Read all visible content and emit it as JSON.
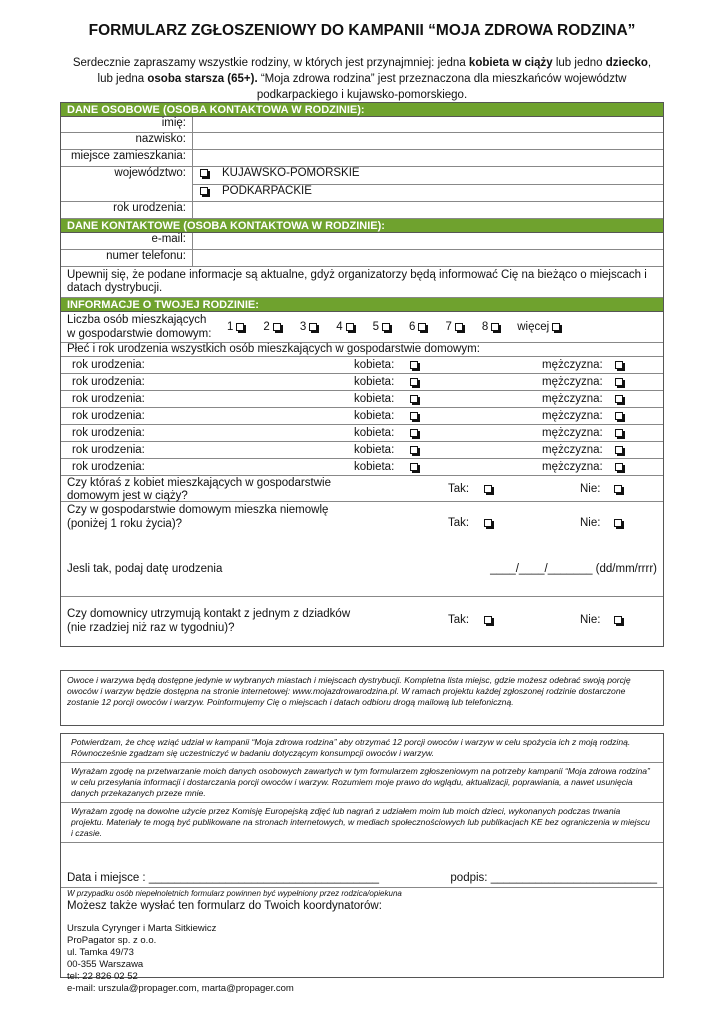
{
  "title": "FORMULARZ ZGŁOSZENIOWY DO KAMPANII “MOJA ZDROWA RODZINA”",
  "intro": {
    "p1": "Serdecznie zapraszamy wszystkie rodziny, w których jest przynajmniej: jedna ",
    "b1": "kobieta w ciąży",
    "p2": " lub jedno ",
    "b2": "dziecko",
    "p3": ", lub jedna ",
    "b3": "osoba starsza (65+).",
    "p4": " “Moja zdrowa rodzina” jest przeznaczona dla mieszkańców województw podkarpackiego i kujawsko-pomorskiego."
  },
  "colors": {
    "section_header": "#6fa22e"
  },
  "personal": {
    "header": "DANE OSOBOWE (OSOBA KONTAKTOWA W RODZINIE):",
    "first_name": "imię:",
    "last_name": "nazwisko:",
    "residence": "miejsce zamieszkania:",
    "voivodeship": "województwo:",
    "options": [
      "KUJAWSKO-POMORSKIE",
      "PODKARPACKIE"
    ],
    "birth_year": "rok urodzenia:"
  },
  "contact": {
    "header": "DANE KONTAKTOWE (OSOBA KONTAKTOWA W RODZINIE):",
    "email": "e-mail:",
    "phone": "numer telefonu:",
    "note": "Upewnij się, że podane informacje są aktualne, gdyż organizatorzy będą informować Cię na bieżąco o miejscach i datach dystrybucji."
  },
  "family": {
    "header": "INFORMACJE O TWOJEJ RODZINIE:",
    "count_label": "Liczba osób mieszkających w gospodarstwie domowym:",
    "count_options": [
      "1",
      "2",
      "3",
      "4",
      "5",
      "6",
      "7",
      "8",
      "więcej"
    ],
    "members_label": "Płeć i rok urodzenia wszystkich osób mieszkających w gospodarstwie domowym:",
    "member_birth": "rok urodzenia:",
    "female": "kobieta:",
    "male": "mężczyzna:",
    "pregnant_q": "Czy któraś z kobiet mieszkających w gospodarstwie domowym jest w ciąży?",
    "infant_q": "Czy w gospodarstwie domowym mieszka niemowlę (poniżej 1 roku życia)?",
    "infant_date": "Jesli tak, podaj datę urodzenia",
    "date_blank": "____/____/_______ (dd/mm/rrrr)",
    "grandparents_q": "Czy domownicy utrzymują kontakt z jednym z dziadków (nie rzadziej niż raz w tygodniu)?",
    "yes": "Tak:",
    "no": "Nie:"
  },
  "info_box": "Owoce i warzywa będą dostępne jedynie w wybranych miastach i miejscach dystrybucji. Kompletna lista miejsc, gdzie możesz odebrać swoją porcję owoców i warzyw będzie dostępna na stronie internetowej: www.mojazdrowarodzina.pl. W ramach projektu każdej zgłoszonej rodzinie dostarczone zostanie 12 porcji owoców i warzyw. Poinformujemy Cię o miejscach i datach odbioru drogą mailową lub telefoniczną.",
  "consents": [
    "Potwierdzam, że chcę wziąć udział w kampanii “Moja zdrowa rodzina” aby otrzymać 12 porcji owoców i warzyw w celu spożycia ich z moją rodziną. Równocześnie zgadzam się uczestniczyć w badaniu dotyczącym konsumpcji owoców i warzyw.",
    "Wyrażam zgodę na przetwarzanie moich danych osobowych zawartych w tym formularzem zgłoszeniowym na potrzeby kampanii “Moja zdrowa rodzina” w celu przesyłania informacji i dostarczania porcji owoców i warzyw. Rozumiem moje prawo do wglądu, aktualizacji, poprawiania, a nawet usunięcia danych przekazanych przeze mnie.",
    "Wyrażam zgodę na dowolne użycie przez Komisję Europejską zdjęć lub nagrań z udziałem moim lub moich dzieci, wykonanych podczas trwania projektu. Materiały te mogą być publikowane na stronach internetowych, w mediach społecznościowych lub publikacjach KE bez ograniczenia w miejscu i czasie."
  ],
  "signature": {
    "date_place": "Data i miejsce :",
    "date_line": "____________________________________",
    "sign": "podpis:",
    "sign_line": "__________________________",
    "minors_note": "W przypadku osób niepełnoletnich formularz powinnen być wypełniony przez rodzica/opiekuna"
  },
  "coordinators": {
    "heading": "Możesz także wysłać ten formularz do Twoich koordynatorów:",
    "lines": [
      "Urszula Cyrynger i Marta Sitkiewicz",
      "ProPagator sp. z o.o.",
      "ul. Tamka 49/73",
      "00-355 Warszawa",
      "tel: 22 826 02 52",
      "e-mail: urszula@propager.com, marta@propager.com"
    ]
  }
}
